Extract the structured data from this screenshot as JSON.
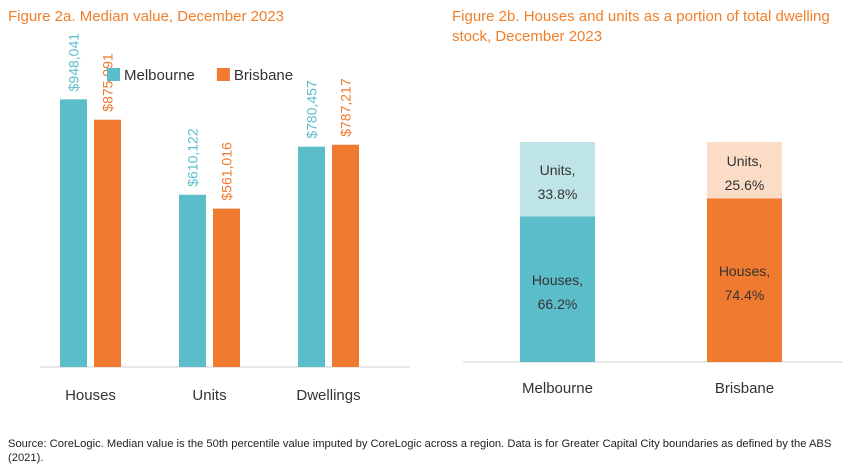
{
  "figure_a_title": "Figure 2a. Median value, December 2023",
  "figure_b_title": "Figure 2b. Houses and units as a portion of total dwelling stock, December 2023",
  "source_note": "Source: CoreLogic. Median value is the 50th percentile value imputed by CoreLogic across a region. Data is for Greater Capital City boundaries as defined by the ABS (2021).",
  "colors": {
    "melbourne": "#5bbdc9",
    "brisbane": "#f07a30",
    "melbourne_light": "#bfe4e8",
    "brisbane_light": "#fbdcc6",
    "title": "#f07f2a",
    "axis": "#d0d0d0"
  },
  "chart_data": [
    {
      "type": "bar",
      "title": "Figure 2a. Median value, December 2023",
      "categories": [
        "Houses",
        "Units",
        "Dwellings"
      ],
      "series": [
        {
          "name": "Melbourne",
          "values": [
            948041,
            610122,
            780457
          ],
          "labels": [
            "$948,041",
            "$610,122",
            "$780,457"
          ]
        },
        {
          "name": "Brisbane",
          "values": [
            875991,
            561016,
            787217
          ],
          "labels": [
            "$875,991",
            "$561,016",
            "$787,217"
          ]
        }
      ],
      "ylim": [
        0,
        1300000
      ],
      "legend": "top",
      "grid": false
    },
    {
      "type": "bar",
      "stacked": true,
      "title": "Figure 2b. Houses and units as a portion of total dwelling stock, December 2023",
      "categories": [
        "Melbourne",
        "Brisbane"
      ],
      "series": [
        {
          "name": "Houses",
          "values": [
            66.2,
            74.4
          ],
          "labels": [
            [
              "Houses,",
              "66.2%"
            ],
            [
              "Houses,",
              "74.4%"
            ]
          ]
        },
        {
          "name": "Units",
          "values": [
            33.8,
            25.6
          ],
          "labels": [
            [
              "Units,",
              "33.8%"
            ],
            [
              "Units,",
              "25.6%"
            ]
          ]
        }
      ],
      "ylim": [
        0,
        100
      ],
      "grid": false
    }
  ]
}
